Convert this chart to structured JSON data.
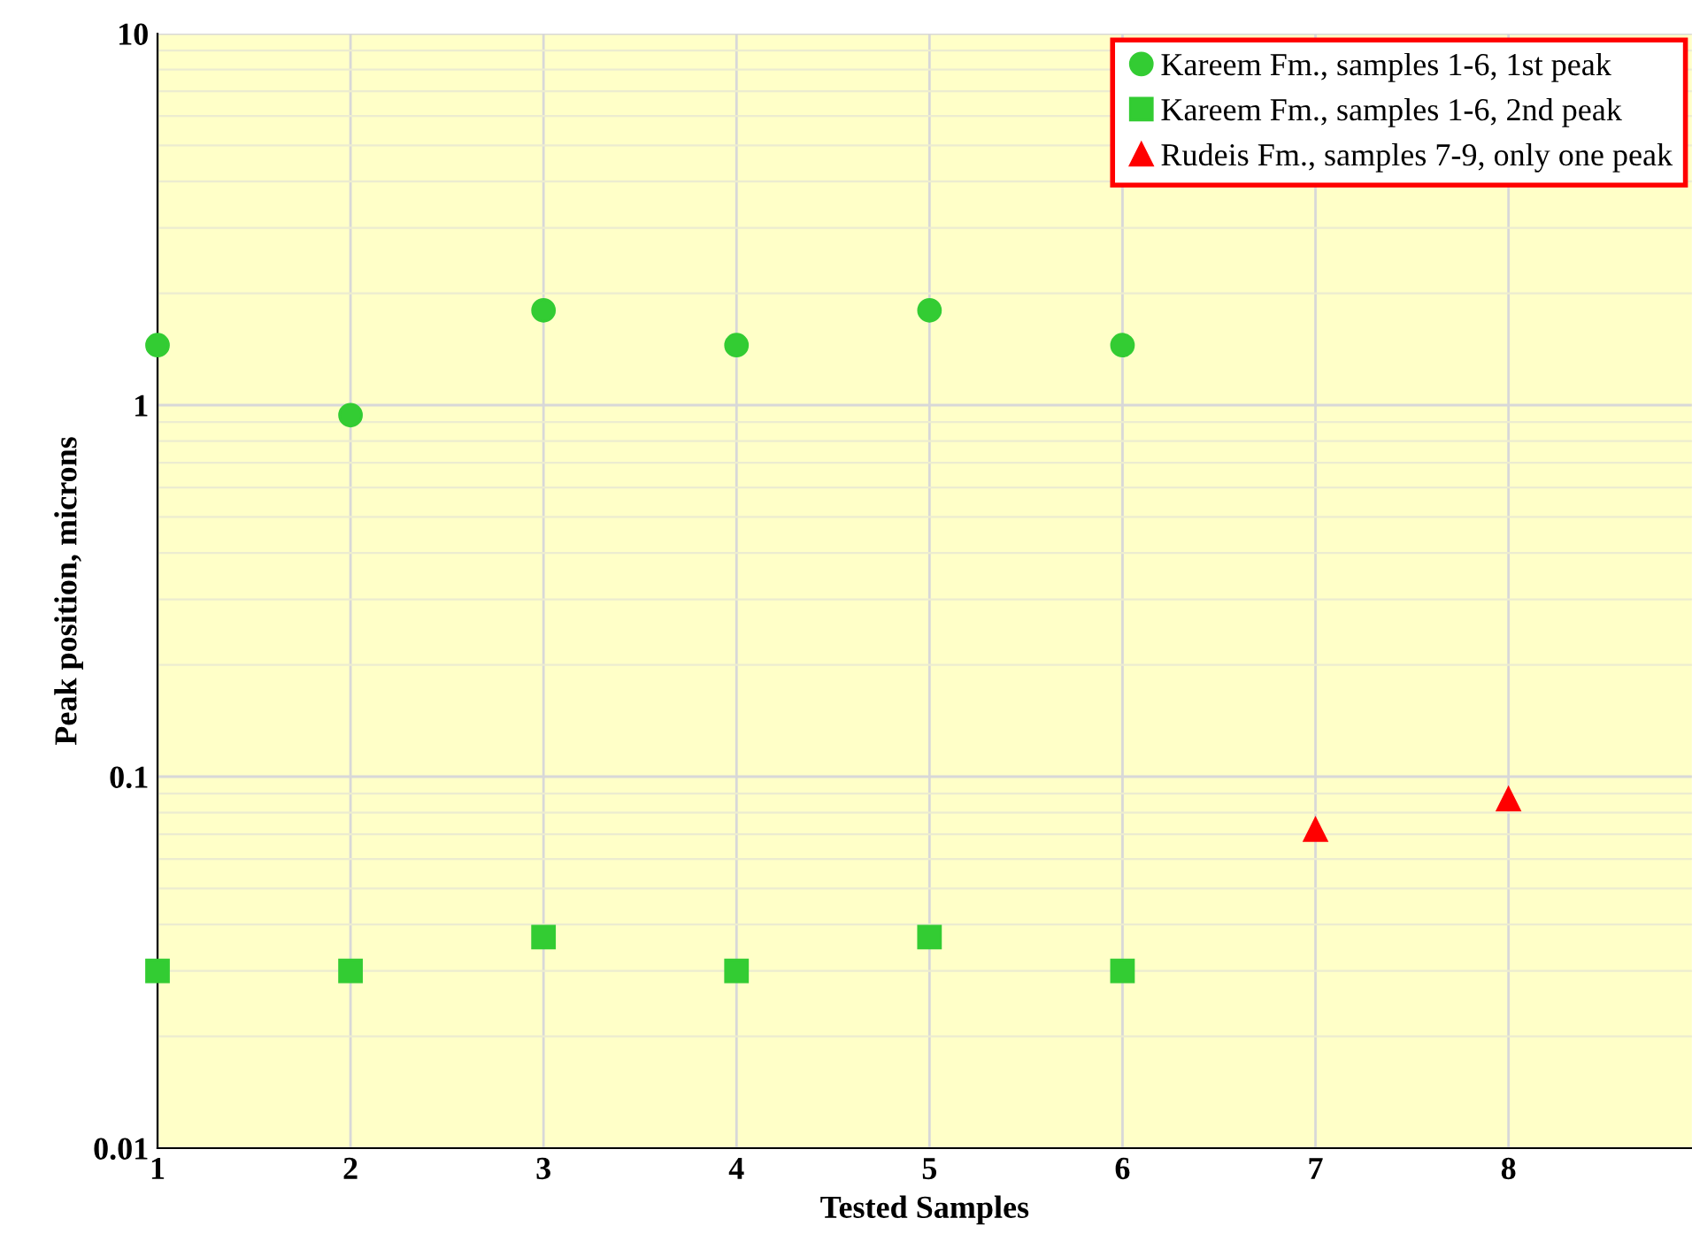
{
  "chart_data": {
    "type": "scatter",
    "xlabel": "Tested Samples",
    "ylabel": "Peak position, microns",
    "log": "y",
    "xlim": [
      1,
      8.95
    ],
    "ylim": [
      0.01,
      10
    ],
    "xticks": [
      1,
      2,
      3,
      4,
      5,
      6,
      7,
      8
    ],
    "yticks": [
      {
        "value": 0.01,
        "label": "0.01"
      },
      {
        "value": 0.1,
        "label": "0.1"
      },
      {
        "value": 1,
        "label": "1"
      },
      {
        "value": 10,
        "label": "10"
      }
    ],
    "grid": true,
    "legend": "top right",
    "series": [
      {
        "name": "Kareem Fm., samples 1-6, 1st peak",
        "color": "#33cc33",
        "marker": "circle",
        "x": [
          1,
          2,
          3,
          4,
          5,
          6
        ],
        "values": [
          1.45,
          0.94,
          1.8,
          1.45,
          1.8,
          1.45
        ]
      },
      {
        "name": "Kareem Fm., samples 1-6, 2nd peak",
        "color": "#33cc33",
        "marker": "square",
        "x": [
          1,
          2,
          3,
          4,
          5,
          6
        ],
        "values": [
          0.03,
          0.03,
          0.037,
          0.03,
          0.037,
          0.03
        ]
      },
      {
        "name": "Rudeis Fm., samples 7-9, only one peak",
        "color": "#ff0000",
        "marker": "triangle",
        "x": [
          7,
          8
        ],
        "values": [
          0.072,
          0.087
        ]
      }
    ]
  }
}
